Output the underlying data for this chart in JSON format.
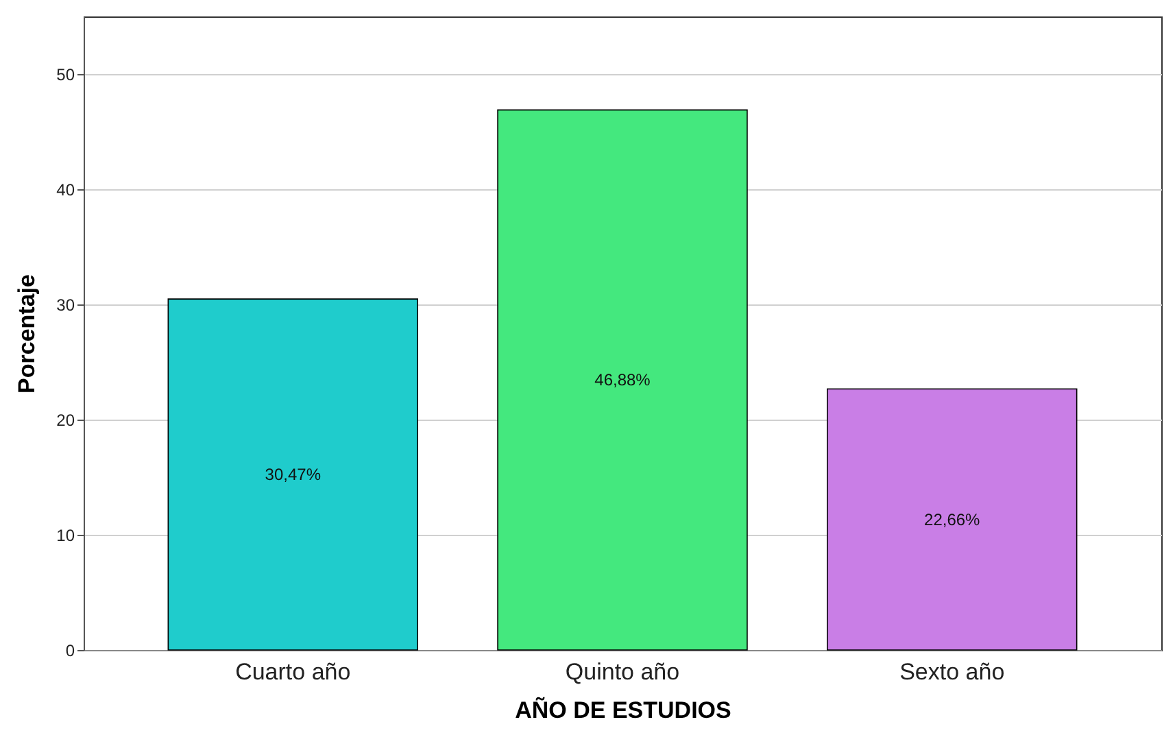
{
  "chart_data": {
    "type": "bar",
    "xlabel": "AÑO DE ESTUDIOS",
    "ylabel": "Porcentaje",
    "categories": [
      "Cuarto año",
      "Quinto año",
      "Sexto año"
    ],
    "values": [
      30.47,
      46.88,
      22.66
    ],
    "colors": [
      "#1fcccc",
      "#44e87e",
      "#c97ee6"
    ],
    "value_labels": [
      "30,47%",
      "46,88%",
      "22,66%"
    ],
    "ylim": [
      0,
      55
    ],
    "yticks": [
      0,
      10,
      20,
      30,
      40,
      50
    ],
    "grid": "y"
  }
}
